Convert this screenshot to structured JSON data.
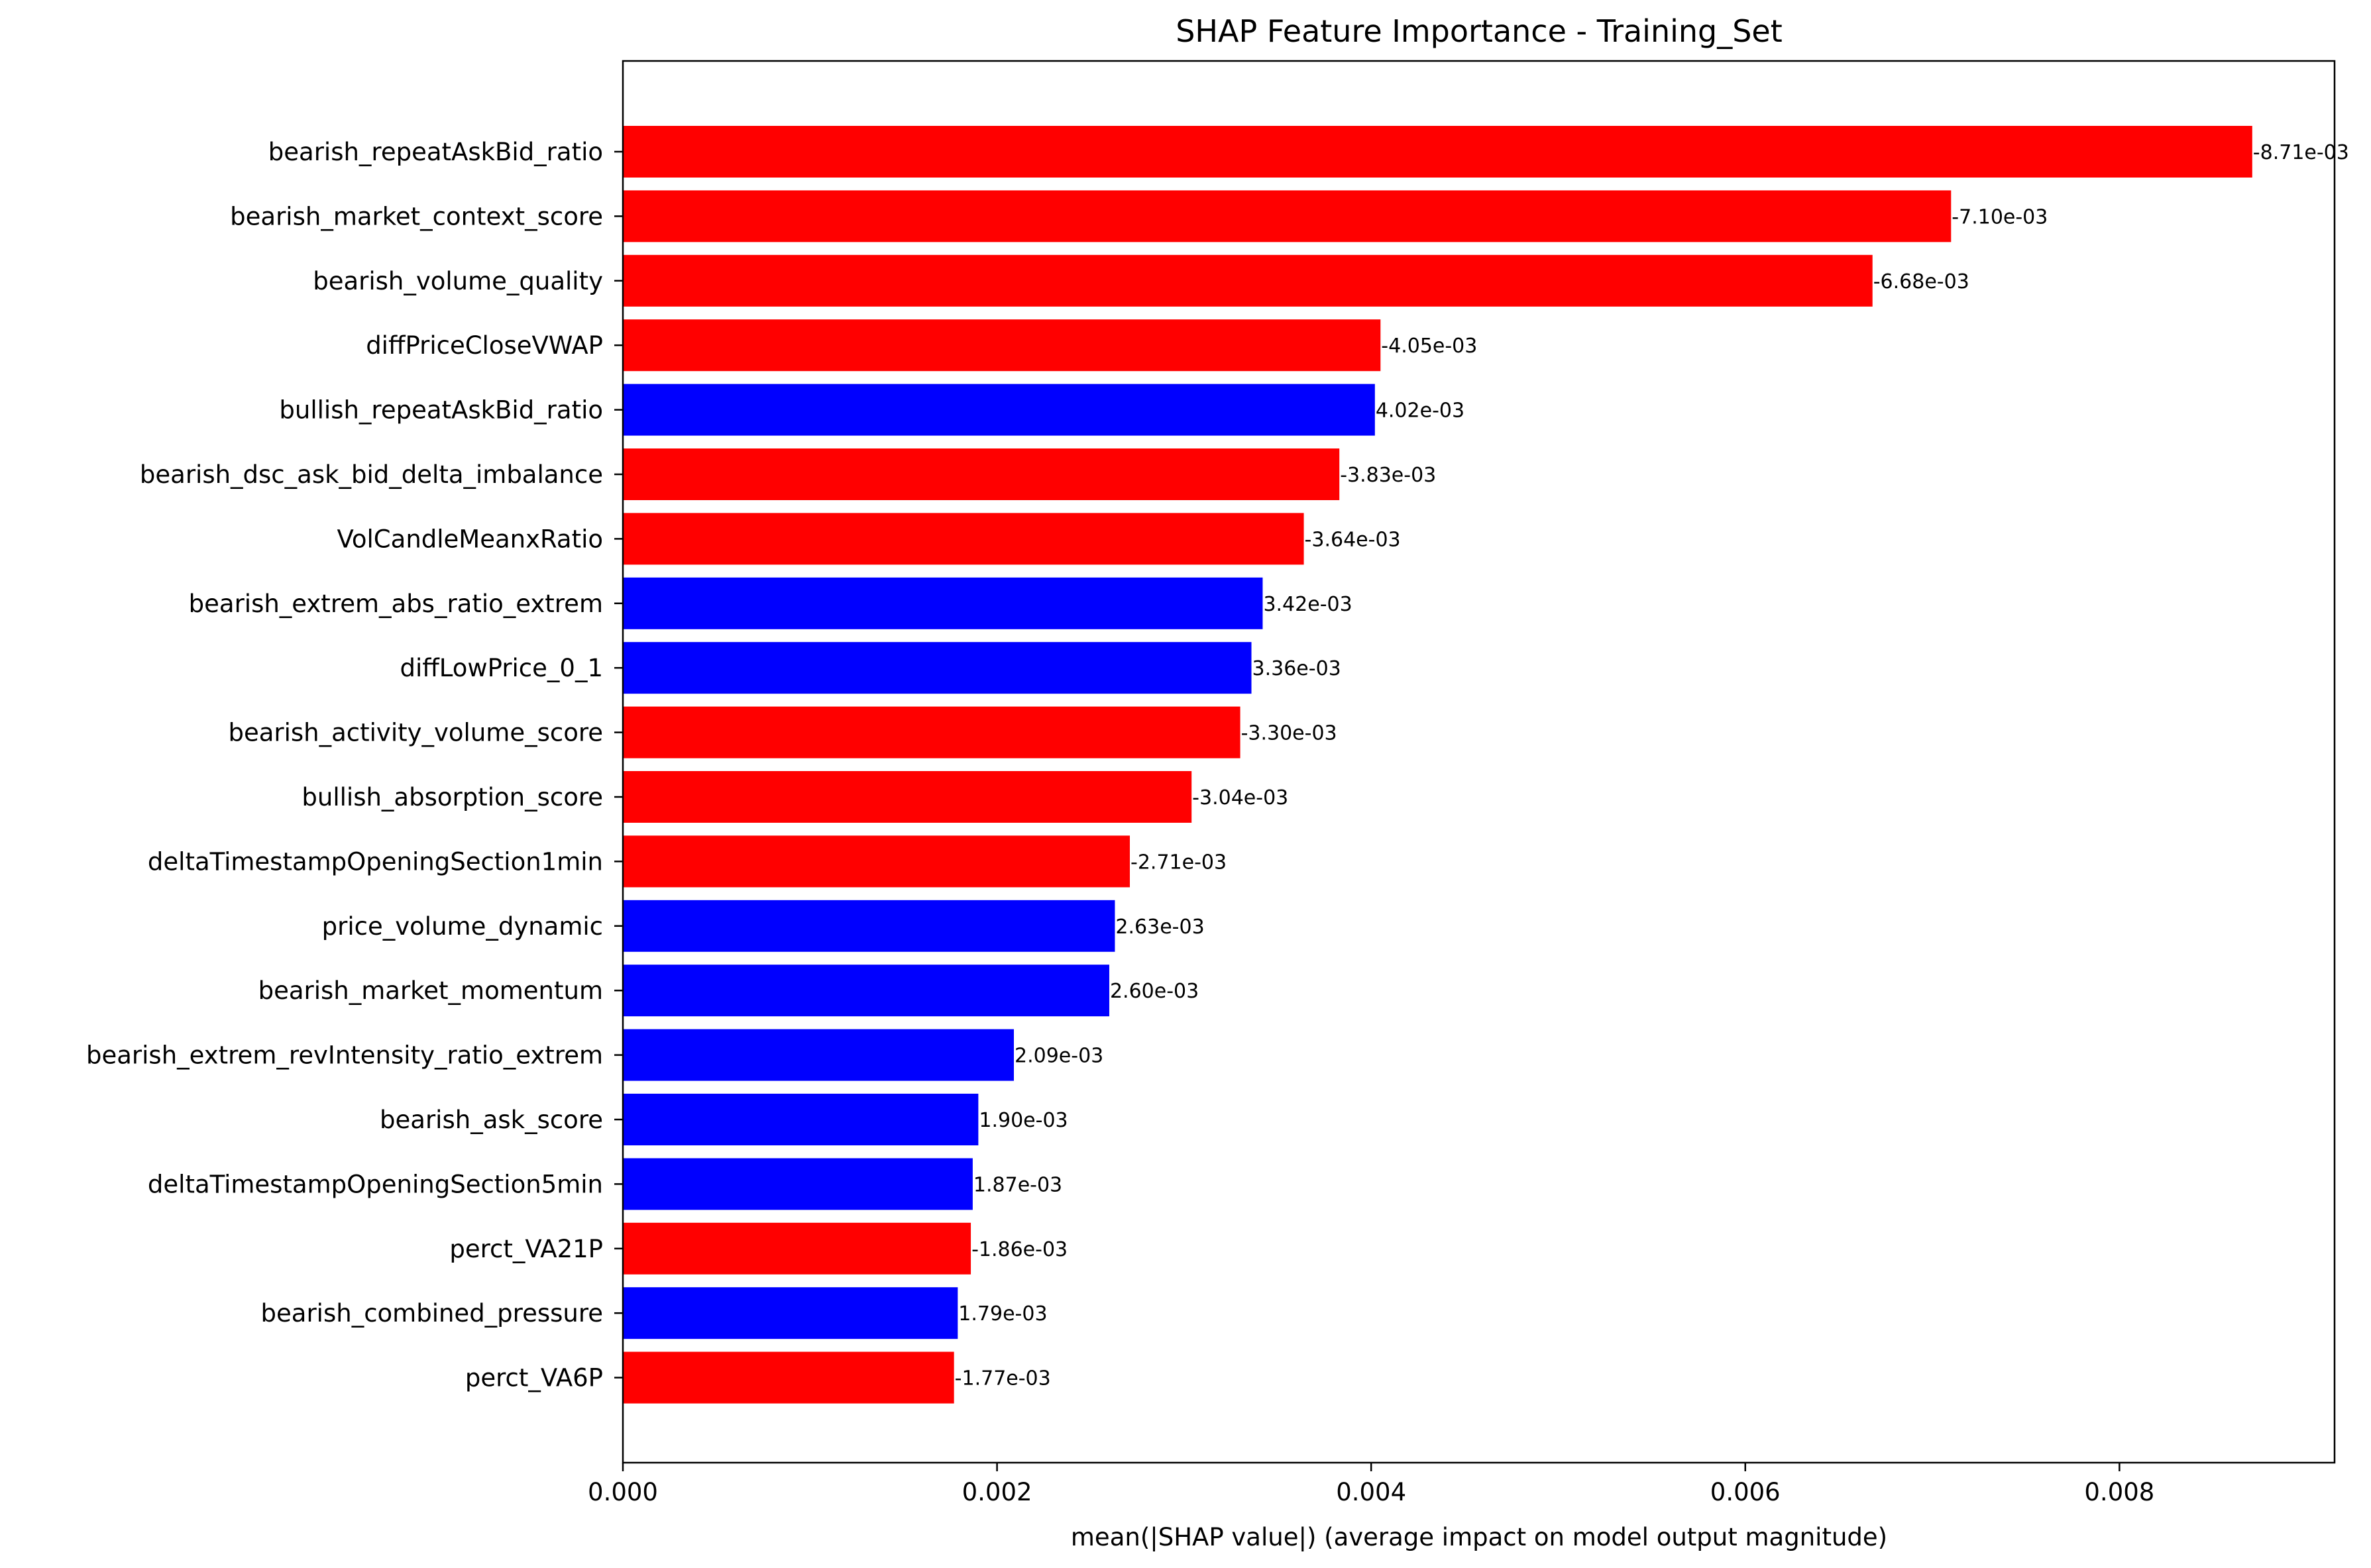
{
  "chart_data": {
    "type": "bar",
    "orientation": "horizontal",
    "title": "SHAP Feature Importance - Training_Set",
    "xlabel": "mean(|SHAP value|) (average impact on model output magnitude)",
    "ylabel": "",
    "xlim": [
      0,
      0.00915
    ],
    "xticks": [
      "0.000",
      "0.002",
      "0.004",
      "0.006",
      "0.008"
    ],
    "grid": false,
    "colors": {
      "negative": "#ff0000",
      "positive": "#0000ff"
    },
    "bars": [
      {
        "feature": "bearish_repeatAskBid_ratio",
        "value": 0.00871,
        "label": "-8.71e-03",
        "color": "#ff0000"
      },
      {
        "feature": "bearish_market_context_score",
        "value": 0.0071,
        "label": "-7.10e-03",
        "color": "#ff0000"
      },
      {
        "feature": "bearish_volume_quality",
        "value": 0.00668,
        "label": "-6.68e-03",
        "color": "#ff0000"
      },
      {
        "feature": "diffPriceCloseVWAP",
        "value": 0.00405,
        "label": "-4.05e-03",
        "color": "#ff0000"
      },
      {
        "feature": "bullish_repeatAskBid_ratio",
        "value": 0.00402,
        "label": "4.02e-03",
        "color": "#0000ff"
      },
      {
        "feature": "bearish_dsc_ask_bid_delta_imbalance",
        "value": 0.00383,
        "label": "-3.83e-03",
        "color": "#ff0000"
      },
      {
        "feature": "VolCandleMeanxRatio",
        "value": 0.00364,
        "label": "-3.64e-03",
        "color": "#ff0000"
      },
      {
        "feature": "bearish_extrem_abs_ratio_extrem",
        "value": 0.00342,
        "label": "3.42e-03",
        "color": "#0000ff"
      },
      {
        "feature": "diffLowPrice_0_1",
        "value": 0.00336,
        "label": "3.36e-03",
        "color": "#0000ff"
      },
      {
        "feature": "bearish_activity_volume_score",
        "value": 0.0033,
        "label": "-3.30e-03",
        "color": "#ff0000"
      },
      {
        "feature": "bullish_absorption_score",
        "value": 0.00304,
        "label": "-3.04e-03",
        "color": "#ff0000"
      },
      {
        "feature": "deltaTimestampOpeningSection1min",
        "value": 0.00271,
        "label": "-2.71e-03",
        "color": "#ff0000"
      },
      {
        "feature": "price_volume_dynamic",
        "value": 0.00263,
        "label": "2.63e-03",
        "color": "#0000ff"
      },
      {
        "feature": "bearish_market_momentum",
        "value": 0.0026,
        "label": "2.60e-03",
        "color": "#0000ff"
      },
      {
        "feature": "bearish_extrem_revIntensity_ratio_extrem",
        "value": 0.00209,
        "label": "2.09e-03",
        "color": "#0000ff"
      },
      {
        "feature": "bearish_ask_score",
        "value": 0.0019,
        "label": "1.90e-03",
        "color": "#0000ff"
      },
      {
        "feature": "deltaTimestampOpeningSection5min",
        "value": 0.00187,
        "label": "1.87e-03",
        "color": "#0000ff"
      },
      {
        "feature": "perct_VA21P",
        "value": 0.00186,
        "label": "-1.86e-03",
        "color": "#ff0000"
      },
      {
        "feature": "bearish_combined_pressure",
        "value": 0.00179,
        "label": "1.79e-03",
        "color": "#0000ff"
      },
      {
        "feature": "perct_VA6P",
        "value": 0.00177,
        "label": "-1.77e-03",
        "color": "#ff0000"
      }
    ]
  }
}
